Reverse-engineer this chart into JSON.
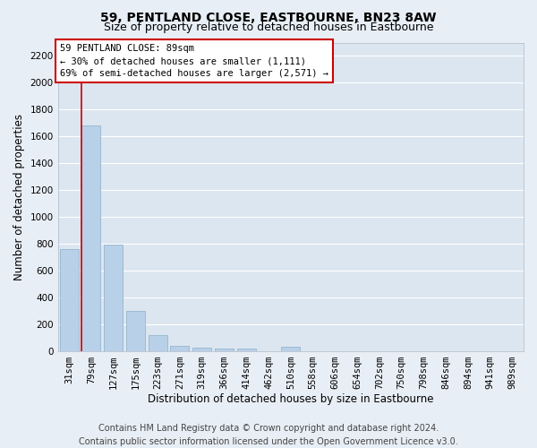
{
  "title": "59, PENTLAND CLOSE, EASTBOURNE, BN23 8AW",
  "subtitle": "Size of property relative to detached houses in Eastbourne",
  "xlabel": "Distribution of detached houses by size in Eastbourne",
  "ylabel": "Number of detached properties",
  "categories": [
    "31sqm",
    "79sqm",
    "127sqm",
    "175sqm",
    "223sqm",
    "271sqm",
    "319sqm",
    "366sqm",
    "414sqm",
    "462sqm",
    "510sqm",
    "558sqm",
    "606sqm",
    "654sqm",
    "702sqm",
    "750sqm",
    "798sqm",
    "846sqm",
    "894sqm",
    "941sqm",
    "989sqm"
  ],
  "values": [
    760,
    1680,
    790,
    295,
    115,
    40,
    25,
    20,
    20,
    0,
    30,
    0,
    0,
    0,
    0,
    0,
    0,
    0,
    0,
    0,
    0
  ],
  "bar_color": "#b8d0e8",
  "bar_edge_color": "#8aafc8",
  "vline_color": "#cc0000",
  "vline_xindex": 1,
  "annotation_text": "59 PENTLAND CLOSE: 89sqm\n← 30% of detached houses are smaller (1,111)\n69% of semi-detached houses are larger (2,571) →",
  "annotation_box_facecolor": "#ffffff",
  "annotation_box_edgecolor": "#cc0000",
  "ylim": [
    0,
    2300
  ],
  "yticks": [
    0,
    200,
    400,
    600,
    800,
    1000,
    1200,
    1400,
    1600,
    1800,
    2000,
    2200
  ],
  "footer_text": "Contains HM Land Registry data © Crown copyright and database right 2024.\nContains public sector information licensed under the Open Government Licence v3.0.",
  "bg_color": "#e8eef5",
  "plot_bg_color": "#dce6f0",
  "grid_color": "#ffffff",
  "title_fontsize": 10,
  "subtitle_fontsize": 9,
  "xlabel_fontsize": 8.5,
  "ylabel_fontsize": 8.5,
  "tick_fontsize": 7.5,
  "annotation_fontsize": 7.5,
  "footer_fontsize": 7
}
